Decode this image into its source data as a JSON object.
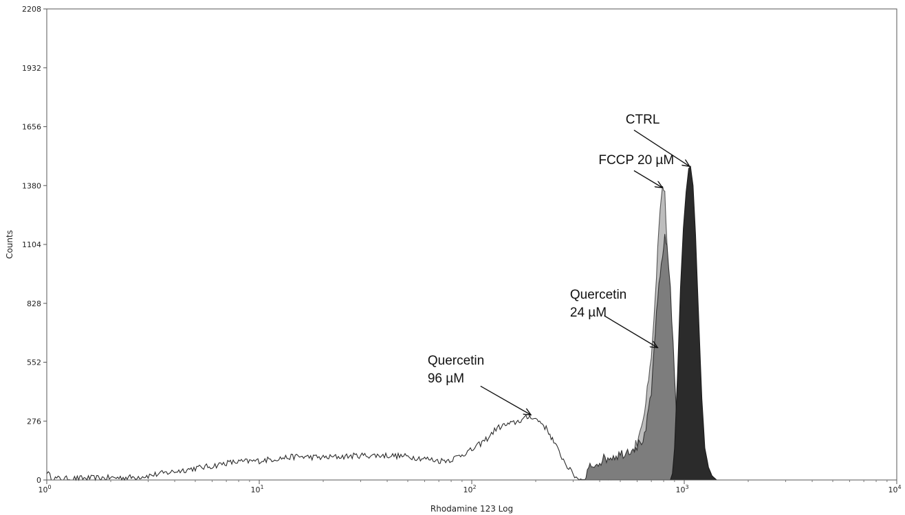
{
  "chart_data": {
    "type": "area",
    "xlabel": "Rhodamine 123 Log",
    "ylabel": "Counts",
    "x_scale": "log",
    "xlim": [
      1,
      10000
    ],
    "ylim": [
      0,
      2208
    ],
    "x_ticks": [
      {
        "value": 1,
        "base": "10",
        "exp": "0"
      },
      {
        "value": 10,
        "base": "10",
        "exp": "1"
      },
      {
        "value": 100,
        "base": "10",
        "exp": "2"
      },
      {
        "value": 1000,
        "base": "10",
        "exp": "3"
      },
      {
        "value": 10000,
        "base": "10",
        "exp": "4"
      }
    ],
    "y_ticks": [
      0,
      276,
      552,
      828,
      1104,
      1380,
      1656,
      1932,
      2208
    ],
    "grid": false,
    "series": [
      {
        "name": "Quercetin 96 µM",
        "fill": "none",
        "stroke": "#2a2a2a",
        "points": [
          [
            1.0,
            40
          ],
          [
            1.05,
            8
          ],
          [
            1.2,
            5
          ],
          [
            1.5,
            8
          ],
          [
            2.0,
            10
          ],
          [
            2.5,
            12
          ],
          [
            3.0,
            20
          ],
          [
            4.0,
            40
          ],
          [
            5.0,
            55
          ],
          [
            6.0,
            65
          ],
          [
            7.0,
            80
          ],
          [
            8.0,
            85
          ],
          [
            10,
            90
          ],
          [
            12,
            100
          ],
          [
            15,
            110
          ],
          [
            20,
            105
          ],
          [
            25,
            110
          ],
          [
            30,
            115
          ],
          [
            40,
            115
          ],
          [
            50,
            110
          ],
          [
            60,
            100
          ],
          [
            70,
            90
          ],
          [
            80,
            95
          ],
          [
            90,
            120
          ],
          [
            100,
            140
          ],
          [
            110,
            170
          ],
          [
            120,
            200
          ],
          [
            130,
            240
          ],
          [
            140,
            255
          ],
          [
            150,
            260
          ],
          [
            160,
            270
          ],
          [
            170,
            280
          ],
          [
            180,
            290
          ],
          [
            190,
            300
          ],
          [
            200,
            285
          ],
          [
            215,
            265
          ],
          [
            230,
            225
          ],
          [
            250,
            155
          ],
          [
            270,
            95
          ],
          [
            290,
            45
          ],
          [
            310,
            12
          ],
          [
            330,
            2
          ],
          [
            400,
            0
          ]
        ],
        "jagged": 14
      },
      {
        "name": "FCCP 20 µM",
        "fill": "#bdbdbd",
        "stroke": "#555555",
        "points": [
          [
            420,
            0
          ],
          [
            500,
            40
          ],
          [
            550,
            90
          ],
          [
            600,
            180
          ],
          [
            650,
            320
          ],
          [
            700,
            560
          ],
          [
            730,
            850
          ],
          [
            760,
            1180
          ],
          [
            790,
            1370
          ],
          [
            810,
            1330
          ],
          [
            830,
            1100
          ],
          [
            850,
            700
          ],
          [
            870,
            300
          ],
          [
            880,
            0
          ]
        ],
        "jagged": 25
      },
      {
        "name": "Quercetin 24 µM",
        "fill": "#7d7d7d",
        "stroke": "#333333",
        "points": [
          [
            340,
            0
          ],
          [
            360,
            60
          ],
          [
            400,
            90
          ],
          [
            450,
            110
          ],
          [
            500,
            120
          ],
          [
            550,
            140
          ],
          [
            600,
            160
          ],
          [
            650,
            200
          ],
          [
            700,
            400
          ],
          [
            730,
            700
          ],
          [
            760,
            900
          ],
          [
            790,
            1060
          ],
          [
            810,
            1130
          ],
          [
            830,
            1100
          ],
          [
            860,
            900
          ],
          [
            900,
            500
          ],
          [
            930,
            150
          ],
          [
            950,
            0
          ]
        ],
        "jagged": 25
      },
      {
        "name": "CTRL",
        "fill": "#2b2b2b",
        "stroke": "#1a1a1a",
        "points": [
          [
            860,
            0
          ],
          [
            880,
            30
          ],
          [
            900,
            150
          ],
          [
            930,
            500
          ],
          [
            960,
            900
          ],
          [
            990,
            1180
          ],
          [
            1020,
            1350
          ],
          [
            1050,
            1460
          ],
          [
            1070,
            1470
          ],
          [
            1100,
            1380
          ],
          [
            1130,
            1150
          ],
          [
            1170,
            750
          ],
          [
            1210,
            380
          ],
          [
            1250,
            150
          ],
          [
            1300,
            60
          ],
          [
            1350,
            20
          ],
          [
            1420,
            0
          ]
        ],
        "jagged": 0
      }
    ],
    "annotations": [
      {
        "lines": [
          "CTRL"
        ],
        "text_at": [
          530,
          1670
        ],
        "arrow_from": [
          580,
          1640
        ],
        "arrow_to": [
          1060,
          1470
        ]
      },
      {
        "lines": [
          "FCCP 20 µM"
        ],
        "text_at": [
          395,
          1480
        ],
        "arrow_from": [
          580,
          1450
        ],
        "arrow_to": [
          790,
          1370
        ]
      },
      {
        "lines": [
          "Quercetin",
          "24 µM"
        ],
        "text_at": [
          290,
          850
        ],
        "arrow_from": [
          420,
          770
        ],
        "arrow_to": [
          750,
          620
        ]
      },
      {
        "lines": [
          "Quercetin",
          "96 µM"
        ],
        "text_at": [
          62,
          540
        ],
        "arrow_from": [
          110,
          440
        ],
        "arrow_to": [
          190,
          305
        ]
      }
    ]
  }
}
